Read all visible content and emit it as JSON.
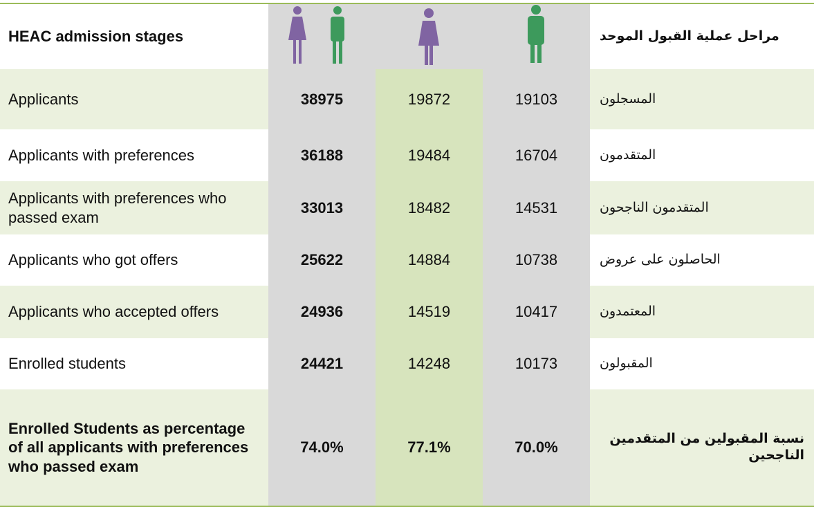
{
  "header": {
    "english": "HEAC admission stages",
    "arabic": "مراحل عملية القبول الموحد"
  },
  "rows": [
    [
      "Applicants",
      "38975",
      "19872",
      "19103",
      "المسجلون"
    ],
    [
      "Applicants with preferences",
      "36188",
      "19484",
      "16704",
      "المتقدمون"
    ],
    [
      "Applicants with preferences who passed exam",
      "33013",
      "18482",
      "14531",
      "المتقدمون الناجحون"
    ],
    [
      "Applicants who got offers",
      "25622",
      "14884",
      "10738",
      "الحاصلون على عروض"
    ],
    [
      "Applicants who accepted offers",
      "24936",
      "14519",
      "10417",
      "المعتمدون"
    ],
    [
      "Enrolled students",
      "24421",
      "14248",
      "10173",
      "المقبولون"
    ],
    [
      "Enrolled Students as percentage of all applicants with preferences who passed exam",
      "74.0%",
      "77.1%",
      "70.0%",
      "نسبة المقبولين من المتقدمين الناجحين"
    ]
  ]
}
